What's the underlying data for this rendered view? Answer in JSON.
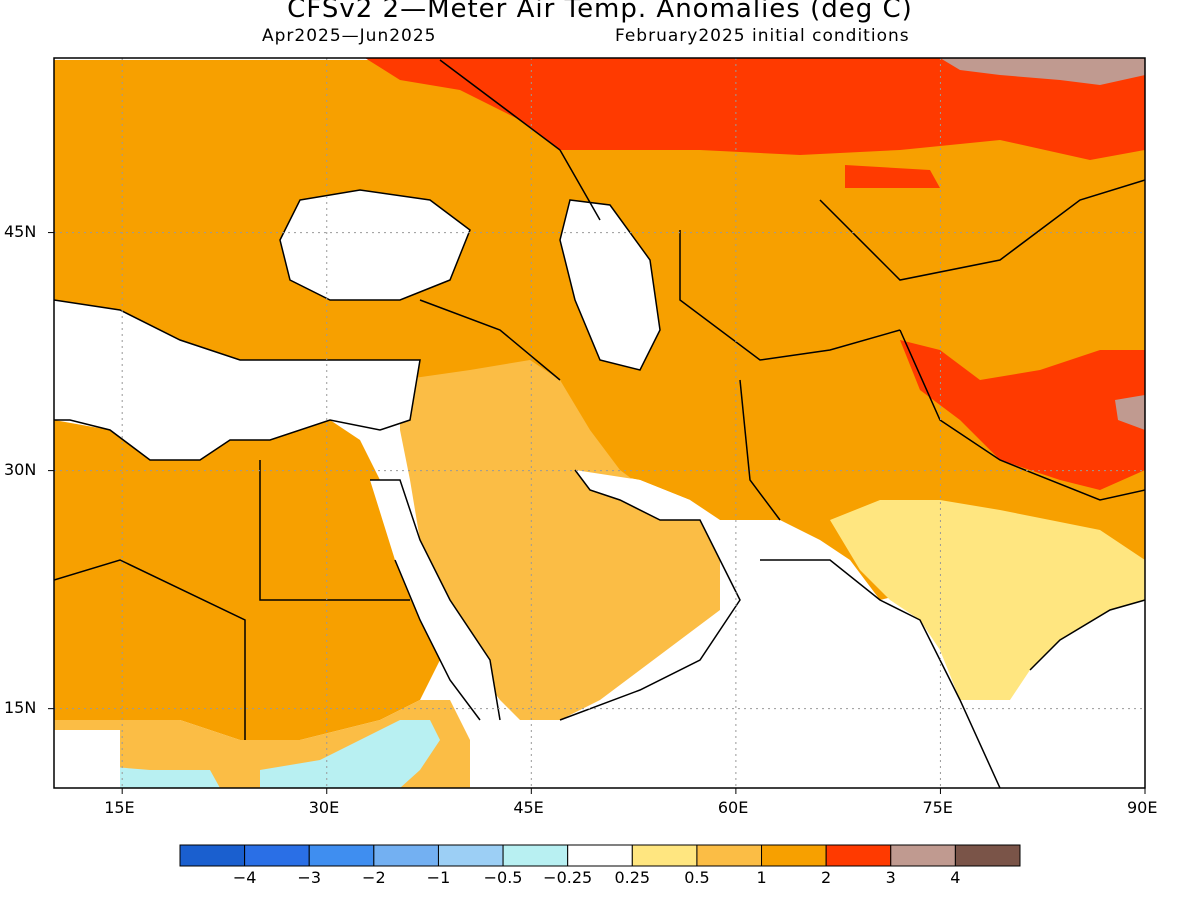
{
  "header": {
    "title": "CFSv2 2—Meter Air Temp. Anomalies (deg C)",
    "period": "Apr2025—Jun2025",
    "init": "February2025 initial conditions"
  },
  "map": {
    "lon_range": [
      10,
      90
    ],
    "lat_range": [
      10,
      56
    ],
    "lon_ticks": [
      "15E",
      "30E",
      "45E",
      "60E",
      "75E",
      "90E"
    ],
    "lat_ticks": [
      "45N",
      "30N",
      "15N"
    ],
    "grid": true
  },
  "legend": {
    "colors": [
      "#1a5fcf",
      "#2a6fe6",
      "#3f8ef0",
      "#73b0f2",
      "#9ccff5",
      "#b8f0f2",
      "#ffffff",
      "#ffe680",
      "#fbbd45",
      "#f7a000",
      "#ff3a00",
      "#c09a90",
      "#7a5448"
    ],
    "labels": [
      "−4",
      "−3",
      "−2",
      "−1",
      "−0.5",
      "−0.25",
      "0.25",
      "0.5",
      "1",
      "2",
      "3",
      "4"
    ]
  },
  "regions": {
    "siberia": "#ff3a00",
    "tibet": "#ff3a00",
    "far_northeast": "#c09a90",
    "main_land": "#f7a000",
    "arabia": "#fbbd45",
    "india": "#ffe680",
    "east_africa_cool": "#b8f0f2"
  }
}
